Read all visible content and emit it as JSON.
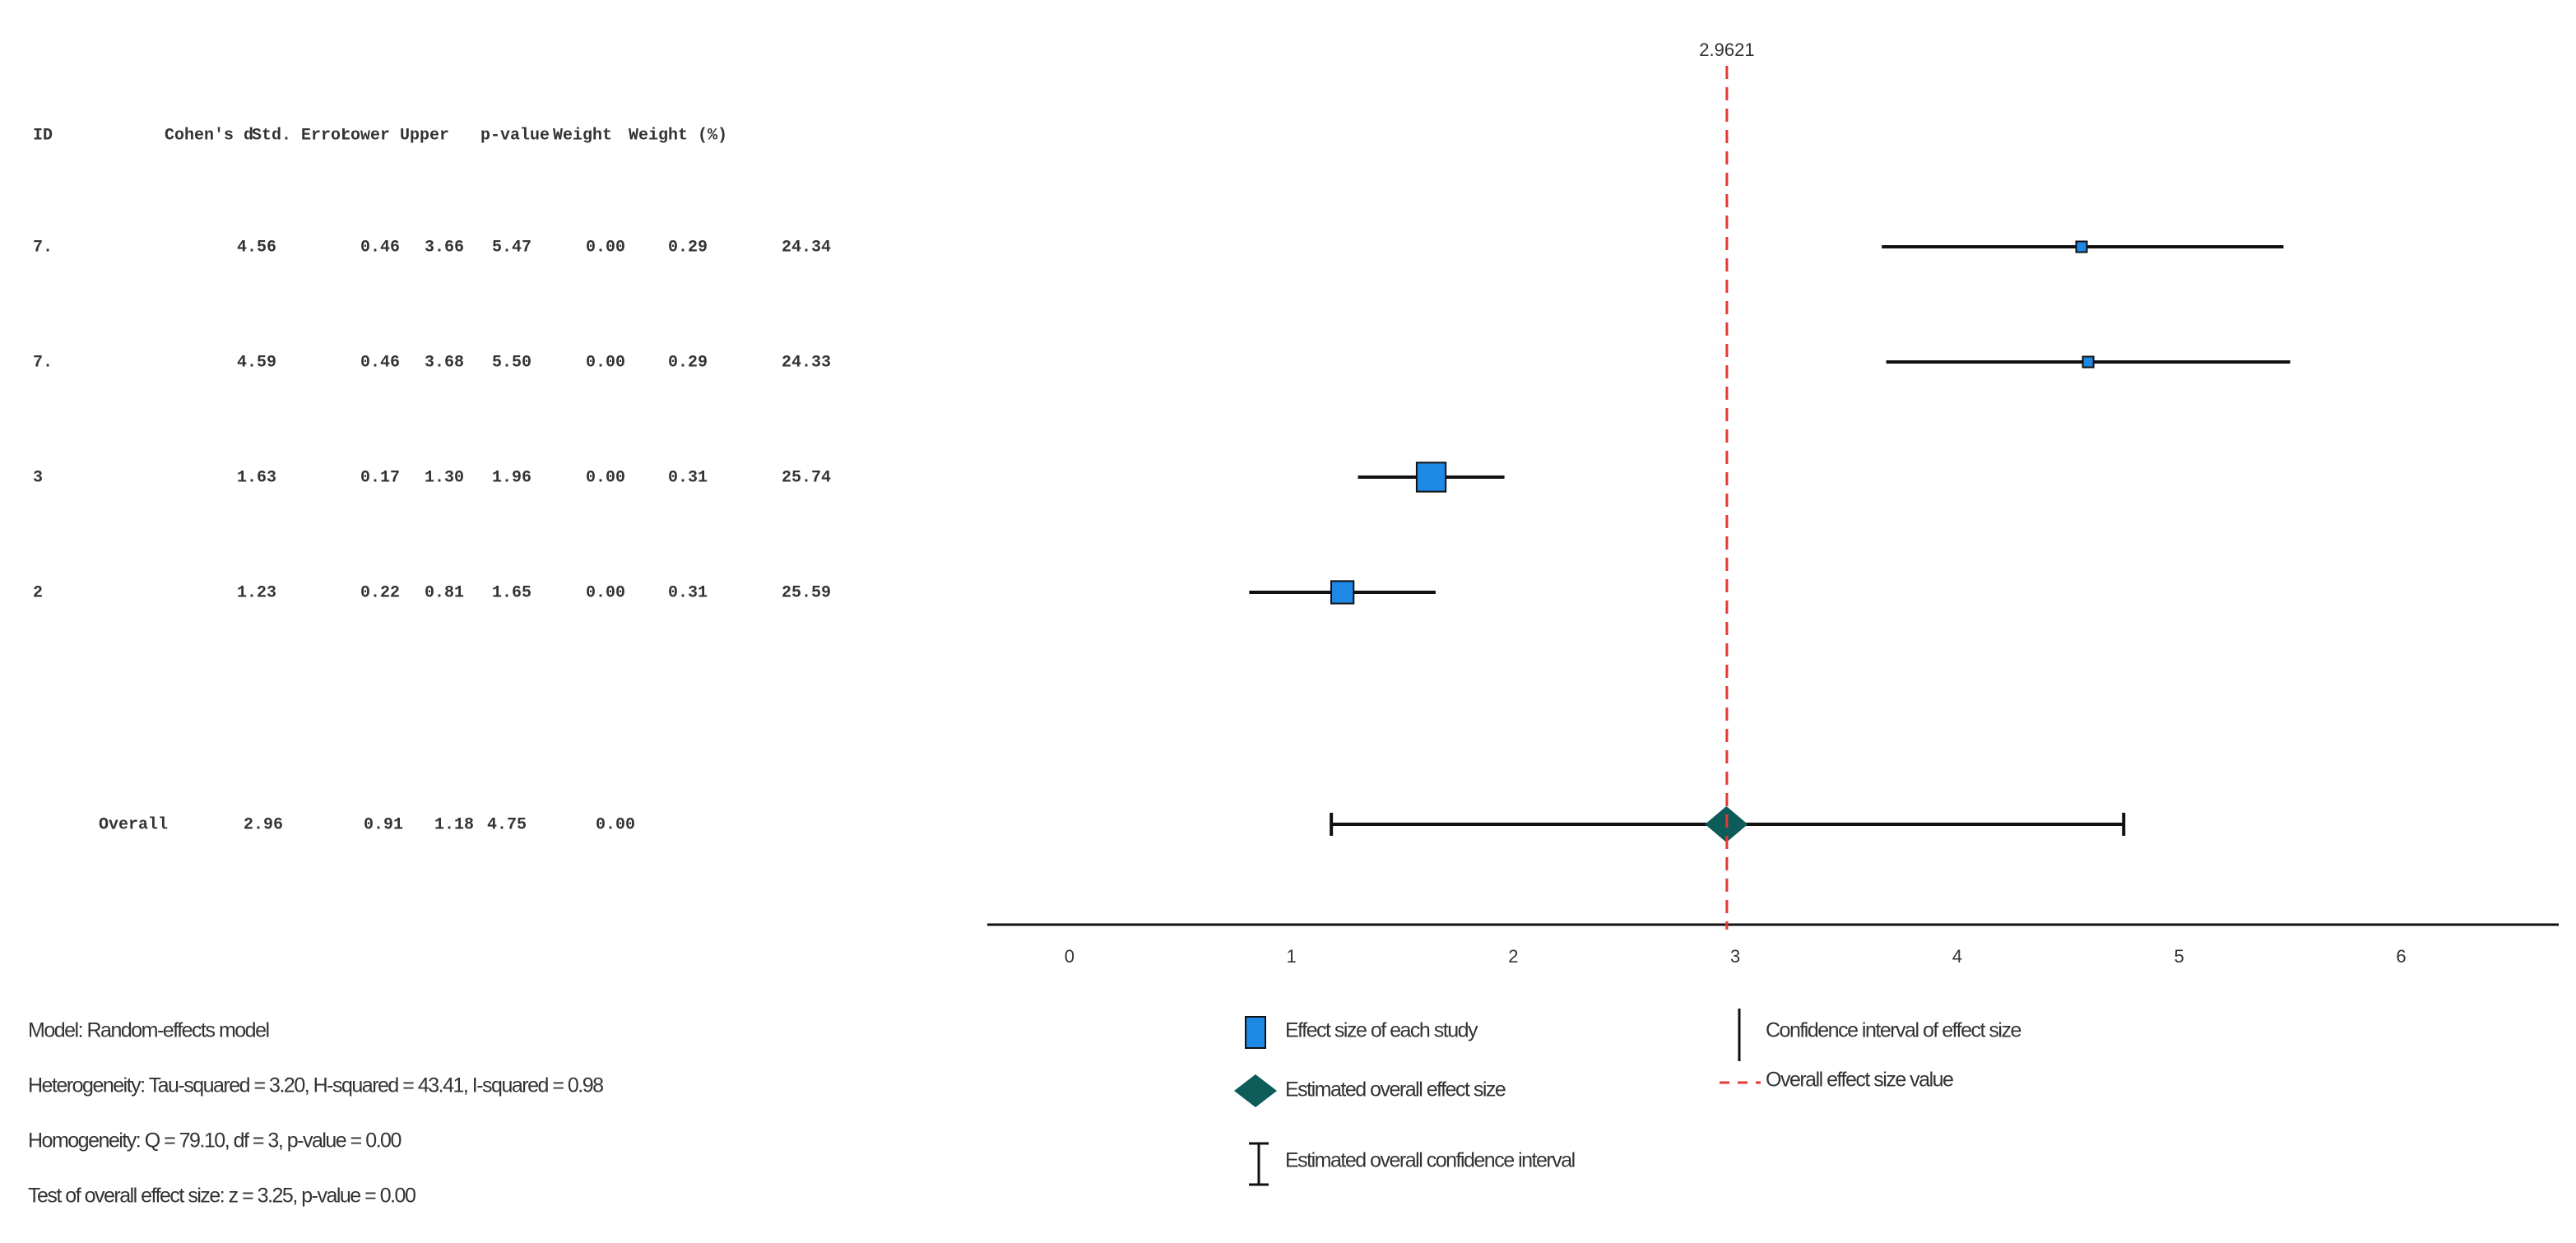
{
  "chart_data": {
    "type": "forest",
    "table": {
      "columns": [
        "ID",
        "Cohen's d",
        "Std. Error",
        "Lower",
        "Upper",
        "p-value",
        "Weight",
        "Weight (%)"
      ],
      "rows": [
        [
          "7.",
          "4.56",
          "0.46",
          "3.66",
          "5.47",
          "0.00",
          "0.29",
          "24.34"
        ],
        [
          "7.",
          "4.59",
          "0.46",
          "3.68",
          "5.50",
          "0.00",
          "0.29",
          "24.33"
        ],
        [
          "3",
          "1.63",
          "0.17",
          "1.30",
          "1.96",
          "0.00",
          "0.31",
          "25.74"
        ],
        [
          "2",
          "1.23",
          "0.22",
          "0.81",
          "1.65",
          "0.00",
          "0.31",
          "25.59"
        ]
      ],
      "overall": [
        "Overall",
        "2.96",
        "0.91",
        "1.18",
        "4.75",
        "0.00"
      ]
    },
    "xlim": [
      -0.37,
      6.71
    ],
    "xticks": [
      0,
      1,
      2,
      3,
      4,
      5,
      6
    ],
    "reference_line": 2.9621,
    "colors": {
      "study": "#1e88e5",
      "overall": "#0d5c5a",
      "reference": "#e53935"
    },
    "legend": [
      "Effect size of each study",
      "Estimated overall effect size",
      "Estimated overall confidence interval",
      "Confidence interval of effect size",
      "Overall effect size value"
    ],
    "notes": [
      "Model: Random-effects model",
      "Heterogeneity: Tau-squared = 3.20, H-squared = 43.41, I-squared = 0.98",
      "Homogeneity: Q = 79.10, df = 3, p-value = 0.00",
      "Test of overall effect size: z = 3.25, p-value = 0.00"
    ]
  }
}
